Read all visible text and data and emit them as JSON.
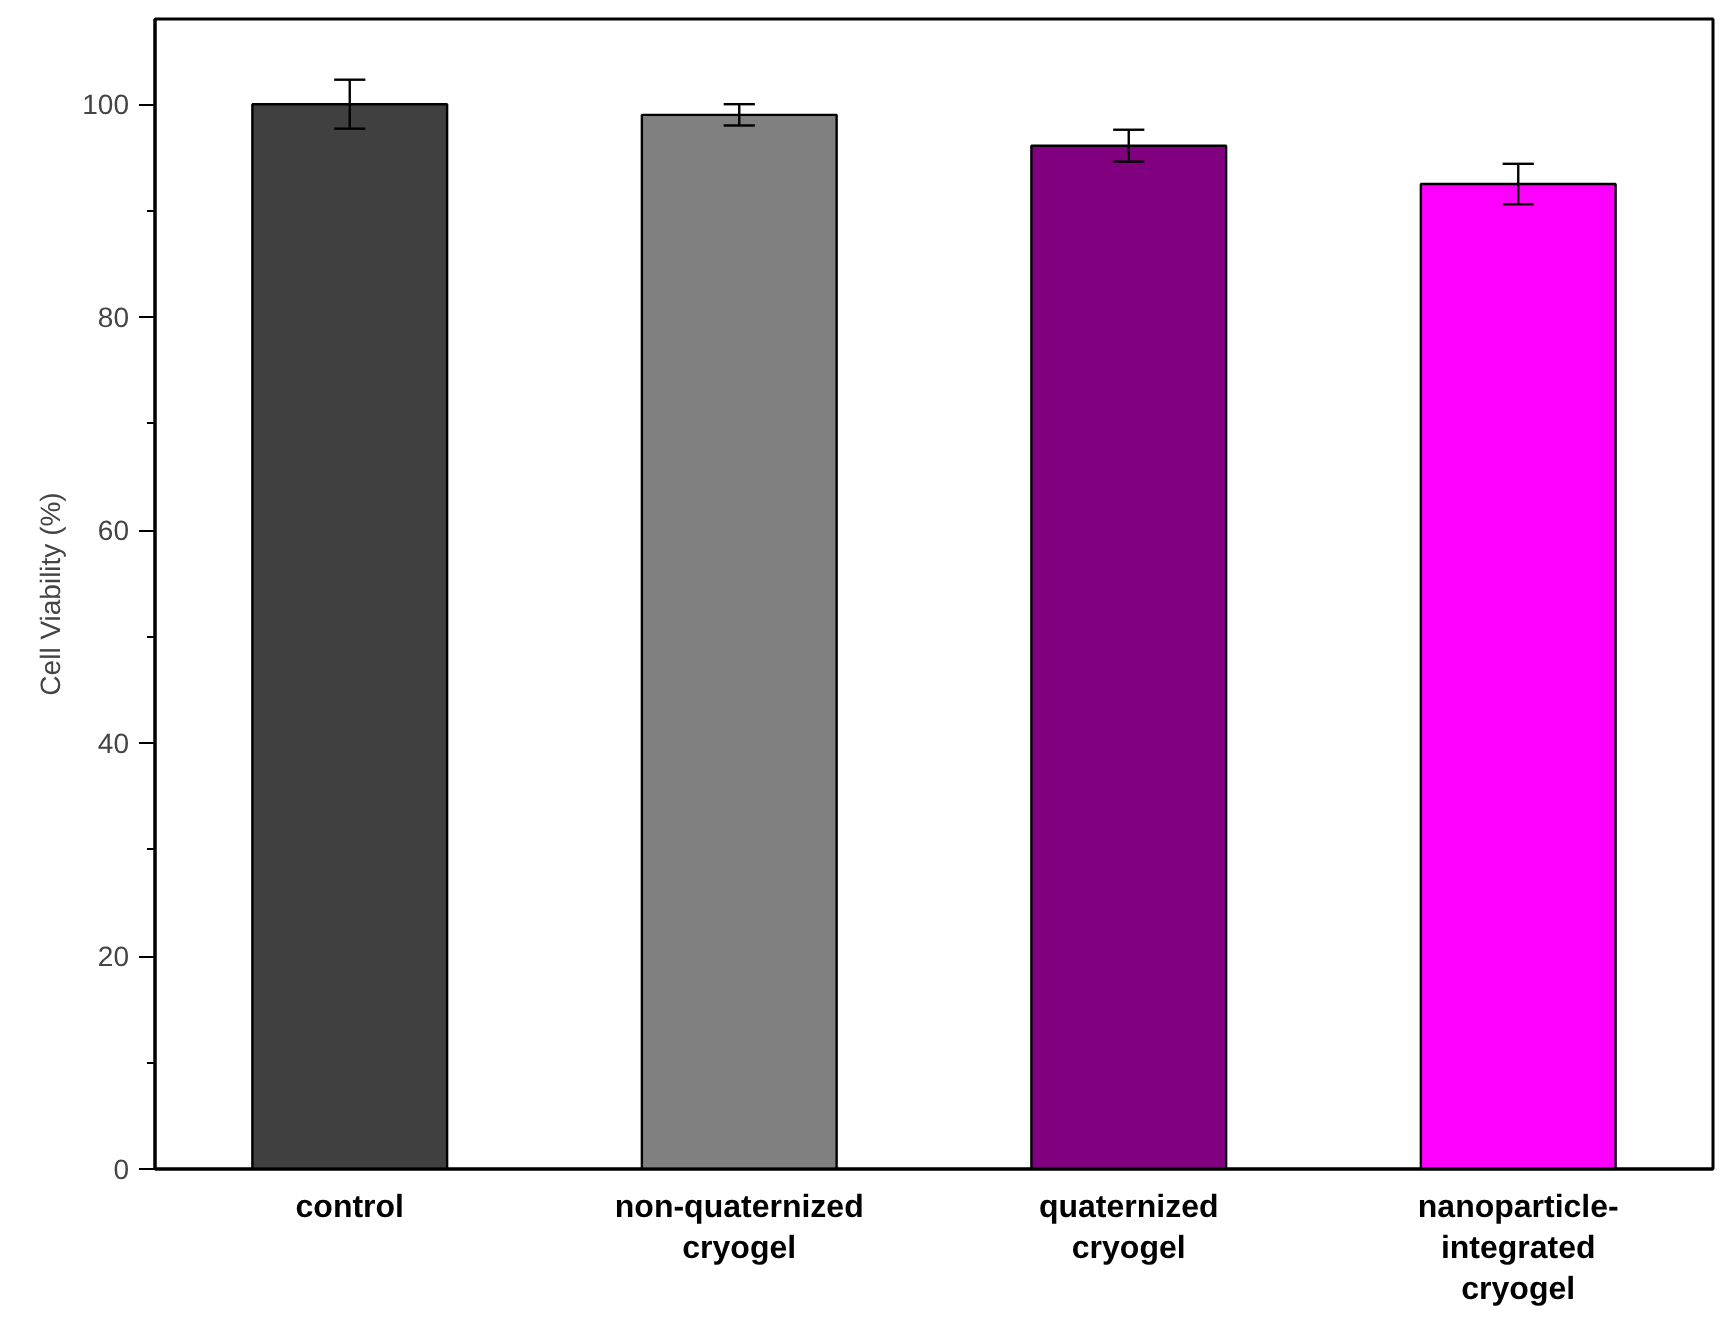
{
  "chart_data": {
    "type": "bar",
    "categories": [
      "control",
      "non-quaternized\ncryogel",
      "quaternized\ncryogel",
      "nanoparticle-\nintegrated\ncryogel"
    ],
    "values": [
      100,
      99.0,
      96.1,
      92.5
    ],
    "colors": [
      "#404040",
      "#808080",
      "#800080",
      "#ff00ff"
    ],
    "errors": [
      2.3,
      1.0,
      1.5,
      1.9
    ],
    "ylabel": "Cell Viability (%)",
    "ylim": [
      0,
      108
    ],
    "yticks": [
      0,
      20,
      40,
      60,
      80,
      100
    ]
  }
}
